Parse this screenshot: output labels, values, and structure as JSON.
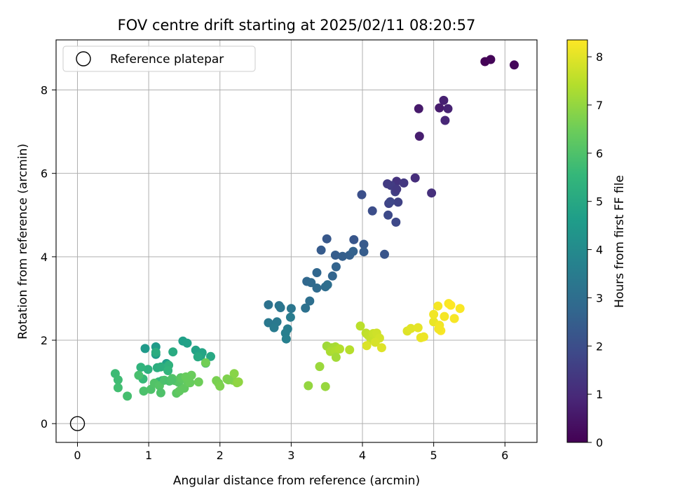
{
  "chart_data": {
    "type": "scatter",
    "title": "FOV centre drift starting at 2025/02/11 08:20:57",
    "xlabel": "Angular distance from reference (arcmin)",
    "ylabel": "Rotation from reference (arcmin)",
    "xlim": [
      -0.3,
      6.45
    ],
    "ylim": [
      -0.45,
      9.2
    ],
    "xticks": [
      0,
      1,
      2,
      3,
      4,
      5,
      6
    ],
    "yticks": [
      0,
      2,
      4,
      6,
      8
    ],
    "grid": true,
    "legend": {
      "placement": "top-left",
      "entries": [
        "Reference platepar"
      ]
    },
    "reference_point": {
      "x": 0,
      "y": 0,
      "label": "Reference platepar"
    },
    "colorbar": {
      "label": "Hours from first FF file",
      "range": [
        0,
        8.35
      ],
      "ticks": [
        0,
        1,
        2,
        3,
        4,
        5,
        6,
        7,
        8
      ],
      "colormap": "viridis"
    },
    "series": [
      {
        "x": [
          5.72,
          5.8,
          6.13,
          4.79,
          4.8,
          5.08,
          5.14,
          5.2,
          5.16
        ],
        "y": [
          8.68,
          8.73,
          8.6,
          7.55,
          6.89,
          7.57,
          7.75,
          7.55,
          7.27
        ],
        "c": [
          0.05,
          0.1,
          0.15,
          0.6,
          0.7,
          0.65,
          0.75,
          0.8,
          0.9
        ]
      },
      {
        "x": [
          4.74,
          4.97,
          4.48,
          4.58,
          4.35,
          4.4,
          4.46,
          4.5,
          4.37,
          4.39,
          4.47,
          4.36,
          4.14,
          3.99,
          4.48,
          4.31
        ],
        "y": [
          5.89,
          5.53,
          5.81,
          5.77,
          5.75,
          5.71,
          5.56,
          5.31,
          5.28,
          5.32,
          4.83,
          5.0,
          5.1,
          5.49,
          5.62,
          4.06
        ],
        "c": [
          1.1,
          1.15,
          1.25,
          1.35,
          1.45,
          1.5,
          1.6,
          1.65,
          1.7,
          1.8,
          1.85,
          1.9,
          2.0,
          2.05,
          1.4,
          2.2
        ]
      },
      {
        "x": [
          3.5,
          3.42,
          3.88,
          4.02,
          3.62,
          3.72,
          3.82,
          4.02,
          3.87,
          3.63,
          3.58,
          3.36,
          3.22,
          3.28,
          3.36,
          3.48,
          3.51,
          3.26,
          3.2
        ],
        "y": [
          4.43,
          4.16,
          4.41,
          4.3,
          4.04,
          4.01,
          4.04,
          4.12,
          4.13,
          3.76,
          3.54,
          3.62,
          3.41,
          3.38,
          3.25,
          3.28,
          3.33,
          2.94,
          2.77
        ],
        "c": [
          2.3,
          2.4,
          2.25,
          2.35,
          2.45,
          2.5,
          2.55,
          2.45,
          2.6,
          2.65,
          2.7,
          2.75,
          2.8,
          2.85,
          2.9,
          2.95,
          3.0,
          3.05,
          3.1
        ]
      },
      {
        "x": [
          2.68,
          2.83,
          2.85,
          3.0,
          2.68,
          2.8,
          2.76,
          2.99,
          2.95,
          2.92,
          2.93
        ],
        "y": [
          2.85,
          2.83,
          2.78,
          2.76,
          2.42,
          2.44,
          2.3,
          2.55,
          2.27,
          2.17,
          2.03
        ],
        "c": [
          3.15,
          3.2,
          3.25,
          3.3,
          3.35,
          3.4,
          3.45,
          3.5,
          3.55,
          3.6,
          3.65
        ]
      },
      {
        "x": [
          0.95,
          1.1,
          1.1,
          1.25,
          1.48,
          1.54,
          1.66,
          1.75,
          1.73,
          1.8,
          1.87,
          1.69,
          1.34,
          1.1,
          1.12,
          1.17,
          0.99,
          1.28,
          0.89,
          1.27,
          1.19,
          1.14,
          0.92
        ],
        "y": [
          1.8,
          1.84,
          1.66,
          1.44,
          1.98,
          1.93,
          1.76,
          1.7,
          1.62,
          1.45,
          1.61,
          1.6,
          1.72,
          1.71,
          1.34,
          1.36,
          1.3,
          1.4,
          1.35,
          1.27,
          1.03,
          1.0,
          1.07
        ],
        "c": [
          4.5,
          4.55,
          4.6,
          4.65,
          4.7,
          4.75,
          4.8,
          4.85,
          4.9,
          4.95,
          5.0,
          5.05,
          5.1,
          5.15,
          5.2,
          5.25,
          5.3,
          5.35,
          5.4,
          5.45,
          5.5,
          5.55,
          5.6
        ]
      },
      {
        "x": [
          0.53,
          0.57,
          0.57,
          0.7,
          0.86,
          0.93,
          1.03,
          1.08,
          1.15,
          1.17,
          1.22,
          1.29,
          1.33,
          1.37,
          1.42,
          1.45,
          1.47,
          1.5,
          1.55,
          1.58,
          1.6,
          1.39,
          1.32,
          1.43,
          1.52
        ],
        "y": [
          1.2,
          1.05,
          0.86,
          0.66,
          1.16,
          0.78,
          0.82,
          0.97,
          0.91,
          0.74,
          1.04,
          1.02,
          1.08,
          1.03,
          0.99,
          1.1,
          1.07,
          0.85,
          1.0,
          0.98,
          1.16,
          0.73,
          1.04,
          0.78,
          1.12
        ],
        "c": [
          5.7,
          5.75,
          5.8,
          5.85,
          5.9,
          5.95,
          6.0,
          6.05,
          6.1,
          6.0,
          5.95,
          5.9,
          6.05,
          6.1,
          6.15,
          6.2,
          6.25,
          6.3,
          6.35,
          6.4,
          6.45,
          6.2,
          6.0,
          6.3,
          6.4
        ]
      },
      {
        "x": [
          1.7,
          1.8,
          1.98,
          1.95,
          2.0,
          2.1,
          2.18,
          2.2,
          2.24,
          2.26,
          2.12
        ],
        "y": [
          1.0,
          1.46,
          0.97,
          1.03,
          0.9,
          1.07,
          1.04,
          1.2,
          0.98,
          1.0,
          1.05
        ],
        "c": [
          6.5,
          6.55,
          6.6,
          6.65,
          6.7,
          6.75,
          6.8,
          6.85,
          6.9,
          6.95,
          6.7
        ]
      },
      {
        "x": [
          3.24,
          3.48,
          3.4,
          3.5,
          3.57,
          3.62,
          3.55,
          3.62,
          3.68,
          3.82,
          3.63
        ],
        "y": [
          0.91,
          0.89,
          1.37,
          1.86,
          1.82,
          1.84,
          1.73,
          1.74,
          1.79,
          1.77,
          1.59
        ],
        "c": [
          7.0,
          7.05,
          7.1,
          7.15,
          7.2,
          7.25,
          7.3,
          7.35,
          7.4,
          7.45,
          7.2
        ]
      },
      {
        "x": [
          3.97,
          4.05,
          4.08,
          4.12,
          4.15,
          4.2,
          4.24,
          4.18,
          4.06,
          4.27
        ],
        "y": [
          2.34,
          2.17,
          2.12,
          2.02,
          2.16,
          2.17,
          2.05,
          1.95,
          1.87,
          1.82
        ],
        "c": [
          7.5,
          7.55,
          7.6,
          7.65,
          7.7,
          7.75,
          7.8,
          7.85,
          7.9,
          7.95
        ]
      },
      {
        "x": [
          4.63,
          4.68,
          4.78,
          4.82,
          4.86,
          5.0,
          5.0,
          5.06,
          5.08,
          5.1,
          5.15,
          5.21,
          5.24,
          5.29,
          5.37,
          5.07
        ],
        "y": [
          2.22,
          2.28,
          2.3,
          2.06,
          2.08,
          2.44,
          2.62,
          2.82,
          2.36,
          2.23,
          2.57,
          2.88,
          2.84,
          2.52,
          2.76,
          2.27
        ],
        "c": [
          7.95,
          8.0,
          8.05,
          8.1,
          8.15,
          8.1,
          8.2,
          8.25,
          8.2,
          8.3,
          8.25,
          8.3,
          8.35,
          8.28,
          8.3,
          8.22
        ]
      }
    ]
  }
}
